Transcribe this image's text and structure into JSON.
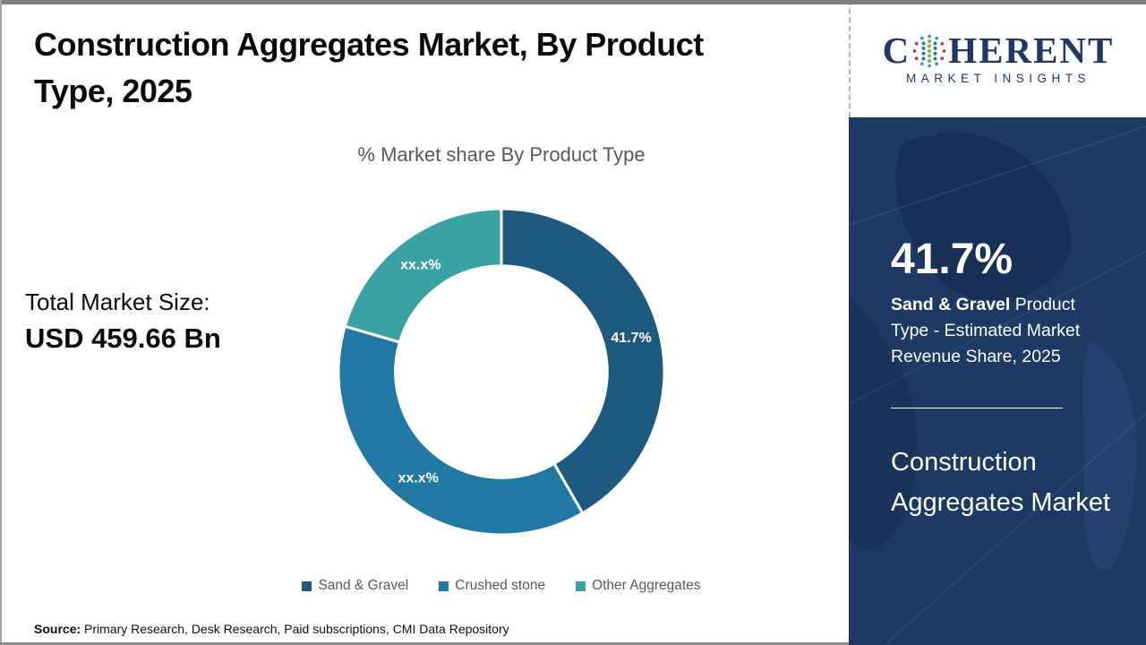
{
  "header": {
    "title": "Construction Aggregates Market, By Product Type, 2025"
  },
  "brand": {
    "prefix": "C",
    "suffix": "HERENT",
    "tagline": "MARKET INSIGHTS"
  },
  "chart_data": {
    "type": "pie",
    "subtype": "donut",
    "title": "% Market share By Product Type",
    "donut_hole_ratio": 0.65,
    "start_angle_deg": 0,
    "legend_position": "bottom",
    "segments": [
      {
        "label": "Sand & Gravel",
        "value_pct": 41.7,
        "value_label": "41.7%",
        "color": "#1E5A80"
      },
      {
        "label": "Crushed stone",
        "value_pct": 37.8,
        "value_label": "xx.x%",
        "color": "#2178A3"
      },
      {
        "label": "Other Aggregates",
        "value_pct": 20.5,
        "value_label": "xx.x%",
        "color": "#3AA2A2"
      }
    ]
  },
  "total_market": {
    "label": "Total Market Size:",
    "value": "USD 459.66 Bn"
  },
  "sidebar": {
    "stat_value": "41.7%",
    "stat_desc_bold": "Sand & Gravel",
    "stat_desc_rest": " Product Type - Estimated Market Revenue Share, 2025",
    "market_name": "Construction Aggregates Market"
  },
  "source": {
    "label": "Source:",
    "text": " Primary Research, Desk Research, Paid subscriptions, CMI Data Repository"
  },
  "colors": {
    "sidebar_bg": "#1D3A64",
    "brand_navy": "#1F3864",
    "muted_text": "#595959"
  }
}
